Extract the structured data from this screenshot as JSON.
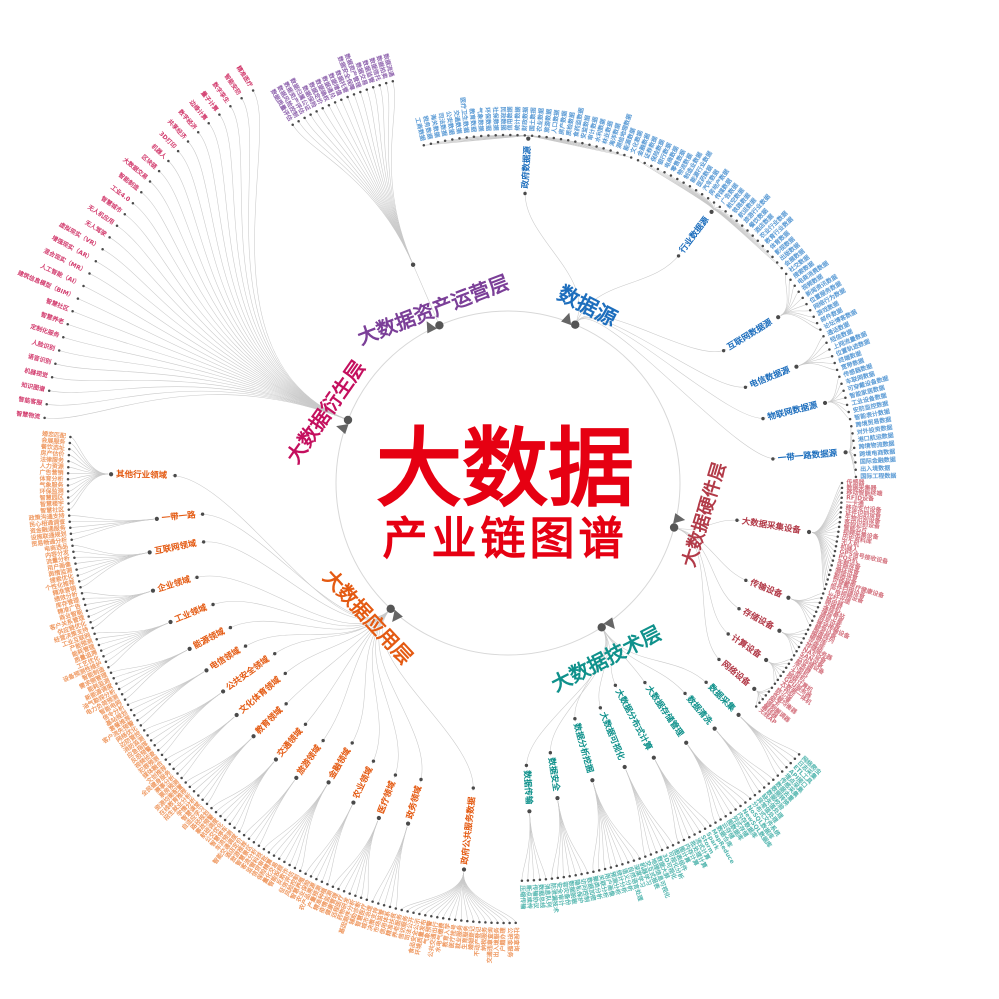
{
  "title": {
    "main": "大数据",
    "sub": "产业链图谱",
    "color": "#e60012"
  },
  "line_color": "#c9c9c9",
  "dot_color": "#4a4a4a",
  "branches": [
    {
      "id": "src",
      "name": "数据源",
      "color": "#1d6ebd",
      "leaf_color": "#5b9bd5",
      "children": [
        {
          "name": "政府数据源",
          "leaves": [
            "工商数据",
            "税务数据",
            "海关数据",
            "司法数据",
            "公安数据",
            "交通数据",
            "医疗卫生数据",
            "教育数据",
            "气象数据",
            "环保数据",
            "社保数据",
            "民政数据",
            "信用数据",
            "统计数据",
            "财政数据",
            "国土数据",
            "农业数据",
            "旅游数据",
            "人口数据",
            "房产数据",
            "质检数据",
            "食药监数据",
            "安监数据",
            "审计数据",
            "水利数据",
            "林业数据",
            "海洋数据",
            "测绘地理数据",
            "能源数据",
            "文化数据"
          ]
        },
        {
          "name": "行业数据源",
          "leaves": [
            "金融数据",
            "证券数据",
            "保险数据",
            "银行数据",
            "电商数据",
            "零售数据",
            "物流数据",
            "制造业数据",
            "能源行业数据",
            "医药数据",
            "汽车数据",
            "房地产数据",
            "传媒数据",
            "广告数据",
            "航空数据",
            "铁路数据",
            "航运数据",
            "旅游行业数据",
            "餐饮数据",
            "酒店数据",
            "农业行业数据",
            "教育行业数据",
            "体育数据",
            "影视数据",
            "出版数据",
            "会展数据"
          ]
        },
        {
          "name": "互联网数据源",
          "leaves": [
            "社交数据",
            "搜索数据",
            "电商消费数据",
            "视频数据",
            "新闻资讯数据",
            "位置服务数据",
            "网络行为数据",
            "游戏数据",
            "邮件数据",
            "论坛博客数据"
          ]
        },
        {
          "name": "电信数据源",
          "leaves": [
            "通话数据",
            "短信数据",
            "上网流量数据",
            "位置轨迹数据",
            "终端数据",
            "宽带数据"
          ]
        },
        {
          "name": "物联网数据源",
          "leaves": [
            "传感器数据",
            "车联网数据",
            "可穿戴设备数据",
            "智能家居数据",
            "工业设备数据",
            "安防监控数据",
            "智能表计数据"
          ]
        },
        {
          "name": "一带一路数据源",
          "leaves": [
            "跨境贸易数据",
            "对外投资数据",
            "港口航运数据",
            "跨境物流数据",
            "跨境电商数据",
            "国际金融数据",
            "出入境数据",
            "国际工程数据"
          ]
        }
      ]
    },
    {
      "id": "hw",
      "name": "大数据硬件层",
      "color": "#b23a48",
      "leaf_color": "#d4737f",
      "children": [
        {
          "name": "大数据采集设备",
          "leaves": [
            "传感器",
            "数据采集器",
            "移动智能终端",
            "RFID设备",
            "一卡通",
            "移动支付设备",
            "证件识别设备",
            "生物识别设备",
            "条码识别设备",
            "智能芯片",
            "视频采集设备",
            "历史资料库",
            "无人机",
            "机器人",
            "GPS信号接收设备",
            "POS机",
            "车载设备",
            "监控设备",
            "测绘设备",
            "勘探设备",
            "可穿戴医疗健康设备",
            "纸件扫描设备",
            "广电视频设备"
          ]
        },
        {
          "name": "传输设备",
          "leaves": [
            "光纤光缆",
            "路由器",
            "交换机",
            "通信基站",
            "通信卫星",
            "网关设备",
            "微波传输设备",
            "载波设备"
          ]
        },
        {
          "name": "存储设备",
          "leaves": [
            "磁盘阵列",
            "磁带库",
            "光盘库",
            "存储服务器",
            "NAS设备",
            "SAN设备",
            "云存储设备"
          ]
        },
        {
          "name": "计算设备",
          "leaves": [
            "服务器",
            "小型机",
            "大型机",
            "超级计算机",
            "GPU服务器",
            "大数据一体机",
            "工作站"
          ]
        },
        {
          "name": "网络设备",
          "leaves": [
            "防火墙",
            "负载均衡器",
            "网卡",
            "调制解调器",
            "集线器",
            "无线AP"
          ]
        }
      ]
    },
    {
      "id": "tech",
      "name": "大数据技术层",
      "color": "#0f918b",
      "leaf_color": "#58b8b1",
      "children": [
        {
          "name": "数据采集",
          "leaves": [
            "网络爬虫",
            "日志采集",
            "ETL工具",
            "API接口",
            "埋点采集",
            "传感采集"
          ]
        },
        {
          "name": "数据清洗",
          "leaves": [
            "数据去重",
            "数据转换",
            "数据校验",
            "缺失值处理",
            "异常值处理"
          ]
        },
        {
          "name": "大数据存储管理",
          "leaves": [
            "分布式文件系统",
            "NoSQL数据库",
            "NewSQL数据库",
            "内存数据库",
            "列式存储",
            "图数据库",
            "云存储",
            "数据仓库"
          ]
        },
        {
          "name": "大数据分布式计算",
          "leaves": [
            "MapReduce",
            "Spark",
            "Storm",
            "流式计算",
            "批处理计算",
            "内存计算",
            "图计算"
          ]
        },
        {
          "name": "大数据可视化",
          "leaves": [
            "图表组件",
            "可视化分析",
            "3D可视化",
            "数据大屏",
            "地理信息可视化",
            "交互式报表"
          ]
        },
        {
          "name": "数据分析挖掘",
          "leaves": [
            "机器学习",
            "深度学习",
            "自然语言处理",
            "语义分析",
            "统计分析",
            "预测分析",
            "用户画像",
            "关联分析",
            "聚类分析"
          ]
        },
        {
          "name": "数据安全",
          "leaves": [
            "数据加密",
            "访问控制",
            "隐私保护",
            "数据脱敏",
            "容灾备份",
            "安全审计",
            "防泄漏技术"
          ]
        },
        {
          "name": "数据传输",
          "leaves": [
            "消息队列",
            "数据总线",
            "传输协议",
            "断点续传",
            "压缩传输"
          ]
        }
      ]
    },
    {
      "id": "app",
      "name": "大数据应用层",
      "color": "#e45a12",
      "leaf_color": "#ef9a63",
      "children": [
        {
          "name": "政府公共服务数据",
          "leaves": [
            "社保查询",
            "公积金服务",
            "户籍办理",
            "出入境服务",
            "交通违章查询",
            "纳税服务",
            "不动产登记",
            "婚姻登记",
            "生育服务",
            "就业服务",
            "医疗挂号",
            "教育入学",
            "水电气缴费",
            "公共交通出行",
            "气象预警",
            "环境质量发布",
            "食品安全公示",
            "司法公开",
            "信访服务",
            "养老服务"
          ]
        },
        {
          "name": "政务领域",
          "leaves": [
            "精准扶贫",
            "信用体系",
            "市场监管",
            "决策支持",
            "城市治理"
          ]
        },
        {
          "name": "医疗领域",
          "leaves": [
            "智慧医疗",
            "辅助诊断",
            "基因测序分析",
            "药物研发",
            "远程医疗",
            "健康管理",
            "疫情监测"
          ]
        },
        {
          "name": "农业领域",
          "leaves": [
            "精准种植",
            "产量预测",
            "农产品溯源",
            "农业保险",
            "智慧养殖"
          ]
        },
        {
          "name": "金融领域",
          "leaves": [
            "风险控制",
            "征信评估",
            "反欺诈",
            "智能投顾",
            "量化交易",
            "保险精算",
            "信贷审批",
            "监管科技"
          ]
        },
        {
          "name": "旅游领域",
          "leaves": [
            "客流分析",
            "智慧景区",
            "旅游推荐",
            "酒店定价"
          ]
        },
        {
          "name": "交通领域",
          "leaves": [
            "智能交通调度",
            "车流预测",
            "智慧停车",
            "公交优化",
            "航班调度",
            "事故预警",
            "路径规划"
          ]
        },
        {
          "name": "教育领域",
          "leaves": [
            "自适应学习",
            "智慧课堂",
            "学情分析",
            "招生就业分析",
            "在线教育推荐",
            "资源均衡配置"
          ]
        },
        {
          "name": "文化体育领域",
          "leaves": [
            "票房预测",
            "赛事分析",
            "全民健身服务",
            "文创推荐",
            "媒体融合"
          ]
        },
        {
          "name": "公共安全领域",
          "leaves": [
            "犯罪预测",
            "视频侦查",
            "反恐预警",
            "应急指挥",
            "消防监测",
            "边防管控"
          ]
        },
        {
          "name": "电信领域",
          "leaves": [
            "网络优化",
            "客户流失预警",
            "套餐推荐",
            "基站规划",
            "信令分析"
          ]
        },
        {
          "name": "能源领域",
          "leaves": [
            "智能电网",
            "电力负荷预测",
            "油气勘探分析",
            "新能源调度",
            "能耗监测",
            "需求侧管理"
          ]
        },
        {
          "name": "工业领域",
          "leaves": [
            "智能制造",
            "设备预测性维护",
            "工艺优化",
            "质量追溯",
            "能耗管理",
            "产能预测",
            "工业互联网"
          ]
        },
        {
          "name": "企业领域",
          "leaves": [
            "经营决策支持",
            "供应链优化",
            "客户关系管理",
            "商业智能",
            "精准广告",
            "库存管理",
            "绩效分析"
          ]
        },
        {
          "name": "互联网领域",
          "leaves": [
            "精准营销",
            "个性化推荐",
            "搜索优化",
            "舆情监测",
            "用户画像",
            "流量分析",
            "内容分发",
            "电商选品"
          ]
        },
        {
          "name": "一带一路",
          "leaves": [
            "贸易畅通分析",
            "设施联通规划",
            "资金融通服务",
            "民心相通调查",
            "政策沟通支持"
          ]
        },
        {
          "name": "其他行业领域",
          "leaves": [
            "智慧社区",
            "智慧楼宇",
            "智慧园区",
            "环保监测",
            "气象服务",
            "体育分析",
            "广告营销",
            "人力资源",
            "法律服务",
            "房产估价",
            "餐饮选址",
            "会展服务",
            "婚恋匹配"
          ]
        }
      ]
    },
    {
      "id": "deriv",
      "name": "大数据衍生层",
      "color": "#c40f5e",
      "leaf_color": "#d23b6d",
      "leaves": [
        "智慧物流",
        "智能客服",
        "知识图谱",
        "机器视觉",
        "语音识别",
        "人脸识别",
        "定制化服务",
        "智慧养老",
        "智慧社区",
        "建筑信息模型（BIM）",
        "人工智能（AI）",
        "混合现实（MR）",
        "增强现实（AR）",
        "虚拟现实（VR）",
        "无人驾驶",
        "无人机应用",
        "智慧城市",
        "工业4.0",
        "智能制造",
        "大数据交易",
        "区块链",
        "机器人",
        "3D打印",
        "共享经济",
        "数字经济",
        "边缘计算",
        "量子计算",
        "数字孪生",
        "智能安防",
        "精准医疗"
      ]
    },
    {
      "id": "asset",
      "name": "大数据资产运营层",
      "color": "#7b3f98",
      "leaf_color": "#9268b0",
      "leaves": [
        "数据质量评估",
        "数据风险控制",
        "数据资产评估",
        "数据归属公证",
        "数据保险",
        "数据定价",
        "数据确权",
        "数据通兑",
        "数据增值",
        "数据托管",
        "数据安全保障",
        "数据资产管理",
        "数据交易",
        "数据监管",
        "数据信托",
        "数据拍卖",
        "数据流通"
      ]
    }
  ]
}
